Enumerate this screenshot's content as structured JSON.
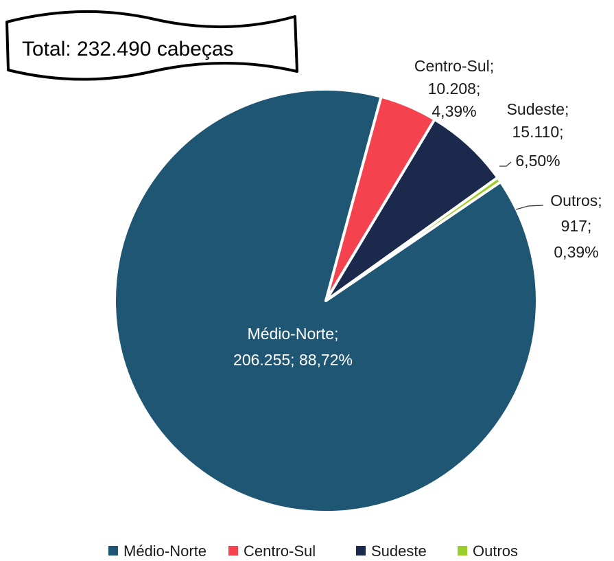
{
  "total_annotation": "Total: 232.490 cabeças",
  "chart_data": {
    "type": "pie",
    "title": "",
    "slices": [
      {
        "name": "Médio-Norte",
        "value": 206255,
        "percent": 88.72,
        "color": "#1f5673",
        "label_lines": [
          "Médio-Norte;",
          "206.255; 88,72%"
        ]
      },
      {
        "name": "Centro-Sul",
        "value": 10208,
        "percent": 4.39,
        "color": "#f4434f",
        "label_lines": [
          "Centro-Sul;",
          "10.208;",
          "4,39%"
        ]
      },
      {
        "name": "Sudeste",
        "value": 15110,
        "percent": 6.5,
        "color": "#1b2a4c",
        "label_lines": [
          "Sudeste;",
          "15.110;",
          "6,50%"
        ]
      },
      {
        "name": "Outros",
        "value": 917,
        "percent": 0.39,
        "color": "#9acd2a",
        "label_lines": [
          "Outros;",
          "917;",
          "0,39%"
        ]
      }
    ],
    "legend": {
      "position": "bottom",
      "entries": [
        "Médio-Norte",
        "Centro-Sul",
        "Sudeste",
        "Outros"
      ]
    }
  }
}
